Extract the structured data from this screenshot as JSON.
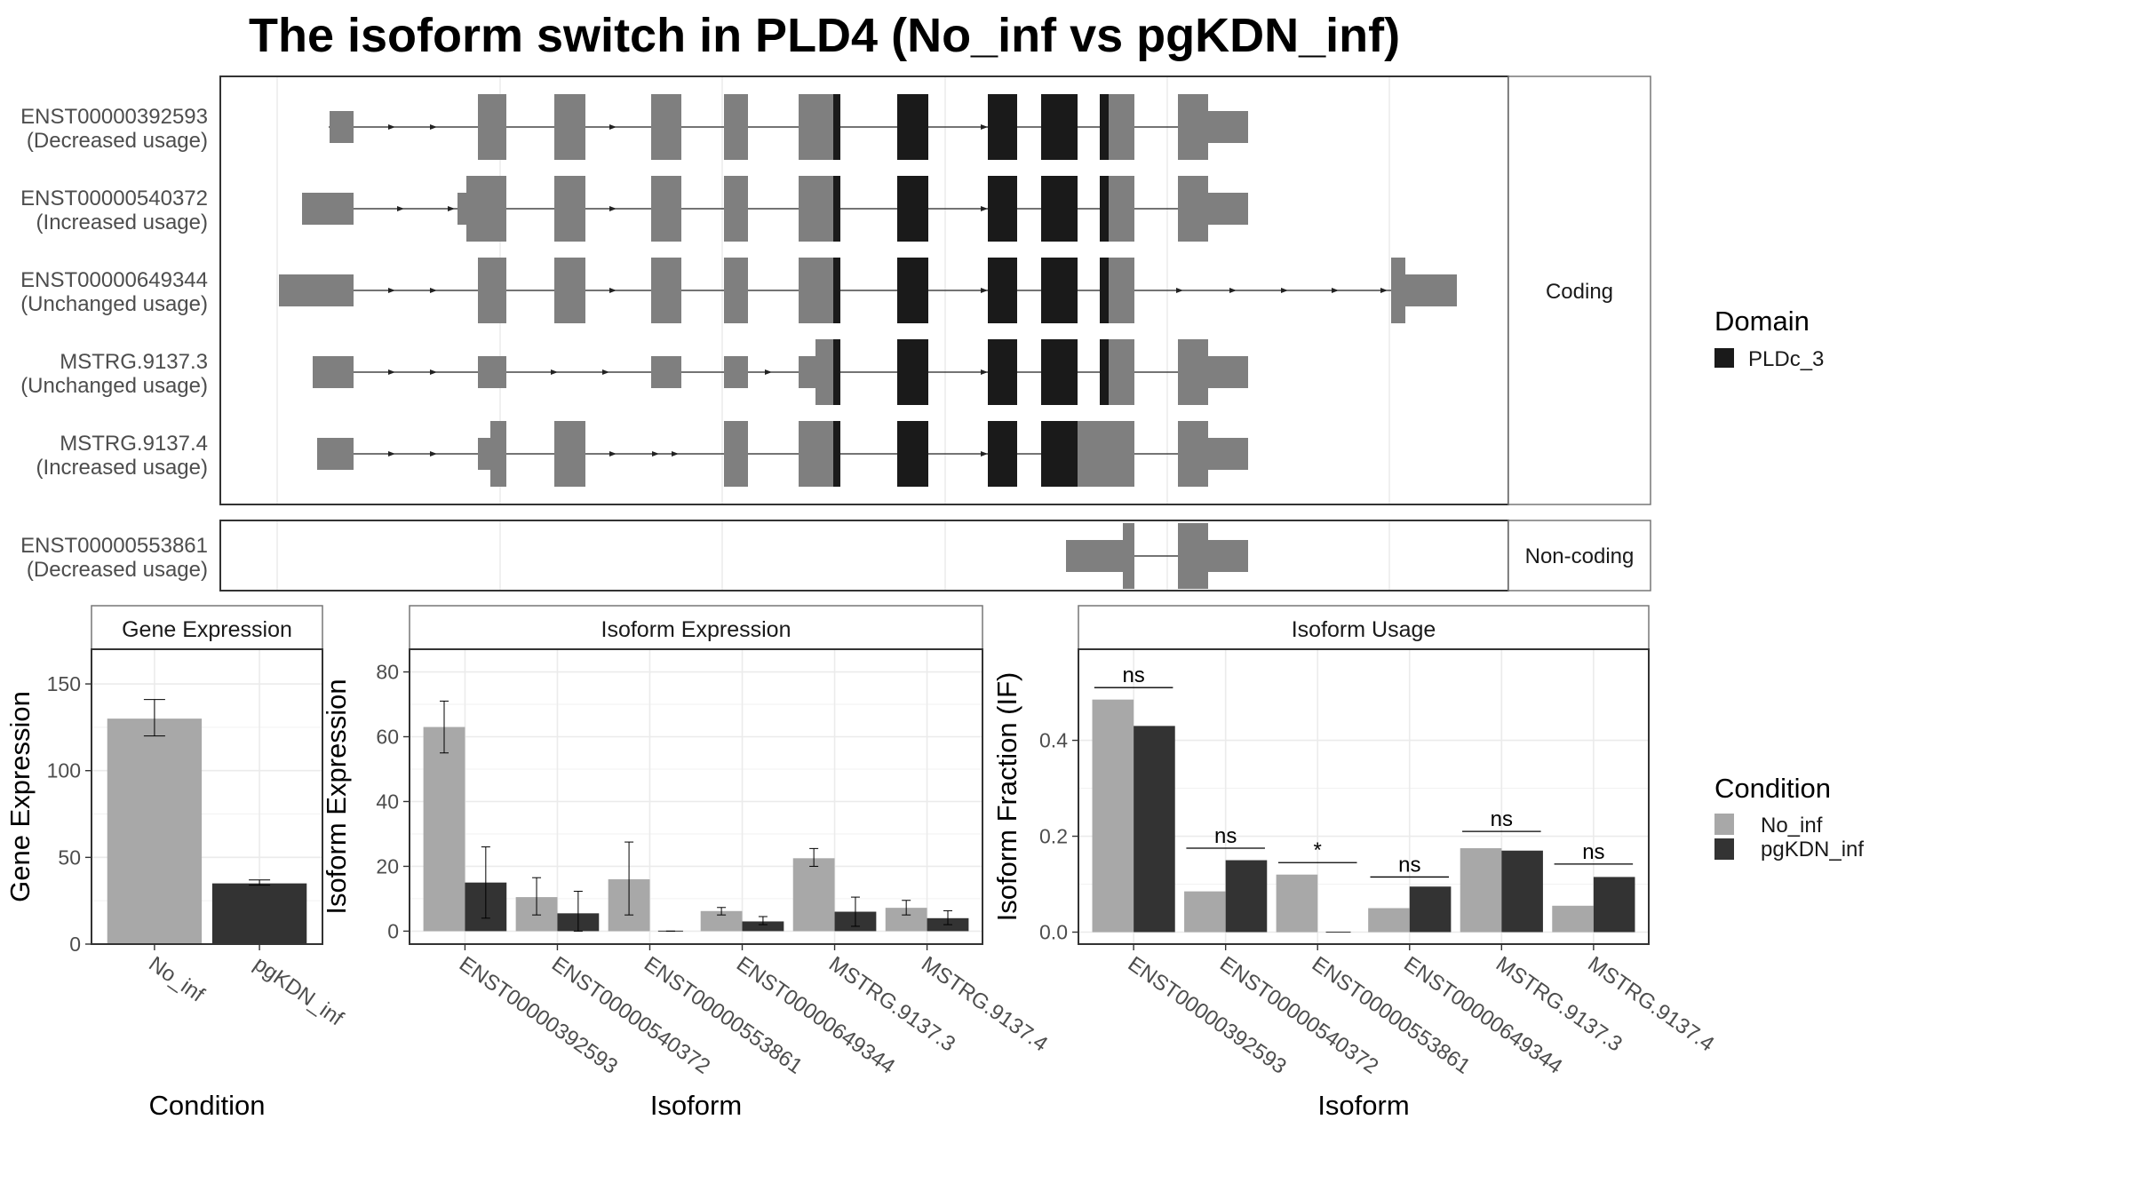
{
  "title": "The isoform switch in PLD4 (No_inf vs pgKDN_inf)",
  "colors": {
    "exon": "#7f7f7f",
    "domain": "#1a1a1a",
    "no_inf": "#a8a8a8",
    "pgkdn_inf": "#333333",
    "grid": "#ebebeb",
    "panel_border": "#333333",
    "strip_border": "#777777"
  },
  "structure": {
    "facets": [
      "Coding",
      "Non-coding"
    ],
    "legend_title": "Domain",
    "legend_items": [
      "PLDc_3"
    ],
    "transcripts": [
      {
        "id": "ENST00000392593",
        "usage": "(Decreased usage)",
        "facet": "Coding"
      },
      {
        "id": "ENST00000540372",
        "usage": "(Increased usage)",
        "facet": "Coding"
      },
      {
        "id": "ENST00000649344",
        "usage": "(Unchanged usage)",
        "facet": "Coding"
      },
      {
        "id": "MSTRG.9137.3",
        "usage": "(Unchanged usage)",
        "facet": "Coding"
      },
      {
        "id": "MSTRG.9137.4",
        "usage": "(Increased usage)",
        "facet": "Coding"
      },
      {
        "id": "ENST00000553861",
        "usage": "(Decreased usage)",
        "facet": "Non-coding"
      }
    ]
  },
  "conditions": [
    "No_inf",
    "pgKDN_inf"
  ],
  "isoforms": [
    "ENST00000392593",
    "ENST00000540372",
    "ENST00000553861",
    "ENST00000649344",
    "MSTRG.9137.3",
    "MSTRG.9137.4"
  ],
  "legend": {
    "condition_title": "Condition"
  },
  "chart_data": [
    {
      "type": "bar",
      "title": "Gene Expression",
      "xlabel": "Condition",
      "ylabel": "Gene Expression",
      "categories": [
        "No_inf",
        "pgKDN_inf"
      ],
      "values": [
        130,
        35
      ],
      "errors": [
        [
          120,
          141
        ],
        [
          34,
          37
        ]
      ],
      "ylim": [
        0,
        170
      ],
      "yticks": [
        0,
        50,
        100,
        150
      ],
      "grid": true
    },
    {
      "type": "bar",
      "title": "Isoform Expression",
      "xlabel": "Isoform",
      "ylabel": "Isoform Expression",
      "categories": [
        "ENST00000392593",
        "ENST00000540372",
        "ENST00000553861",
        "ENST00000649344",
        "MSTRG.9137.3",
        "MSTRG.9137.4"
      ],
      "series": [
        {
          "name": "No_inf",
          "values": [
            63,
            10.5,
            16,
            6.2,
            22.5,
            7.2
          ],
          "errors": [
            [
              55,
              71
            ],
            [
              5,
              16.5
            ],
            [
              5,
              27.5
            ],
            [
              5,
              7.3
            ],
            [
              20,
              25.5
            ],
            [
              5,
              9.5
            ]
          ]
        },
        {
          "name": "pgKDN_inf",
          "values": [
            15,
            5.5,
            0,
            3,
            6,
            4
          ],
          "errors": [
            [
              4,
              26
            ],
            [
              0,
              12.3
            ],
            [
              0,
              0
            ],
            [
              2,
              4.5
            ],
            [
              1.5,
              10.5
            ],
            [
              2,
              6.3
            ]
          ]
        }
      ],
      "ylim": [
        -4,
        87
      ],
      "yticks": [
        0,
        20,
        40,
        60,
        80
      ],
      "grid": true
    },
    {
      "type": "bar",
      "title": "Isoform Usage",
      "xlabel": "Isoform",
      "ylabel": "Isoform Fraction (IF)",
      "categories": [
        "ENST00000392593",
        "ENST00000540372",
        "ENST00000553861",
        "ENST00000649344",
        "MSTRG.9137.3",
        "MSTRG.9137.4"
      ],
      "series": [
        {
          "name": "No_inf",
          "values": [
            0.485,
            0.085,
            0.12,
            0.05,
            0.175,
            0.055
          ]
        },
        {
          "name": "pgKDN_inf",
          "values": [
            0.43,
            0.15,
            0,
            0.095,
            0.17,
            0.115
          ]
        }
      ],
      "significance": [
        "ns",
        "ns",
        "*",
        "ns",
        "ns",
        "ns"
      ],
      "sig_level": [
        0.51,
        0.175,
        0.145,
        0.115,
        0.21,
        0.142
      ],
      "ylim": [
        -0.025,
        0.59
      ],
      "yticks": [
        0.0,
        0.2,
        0.4
      ],
      "grid": true
    }
  ]
}
